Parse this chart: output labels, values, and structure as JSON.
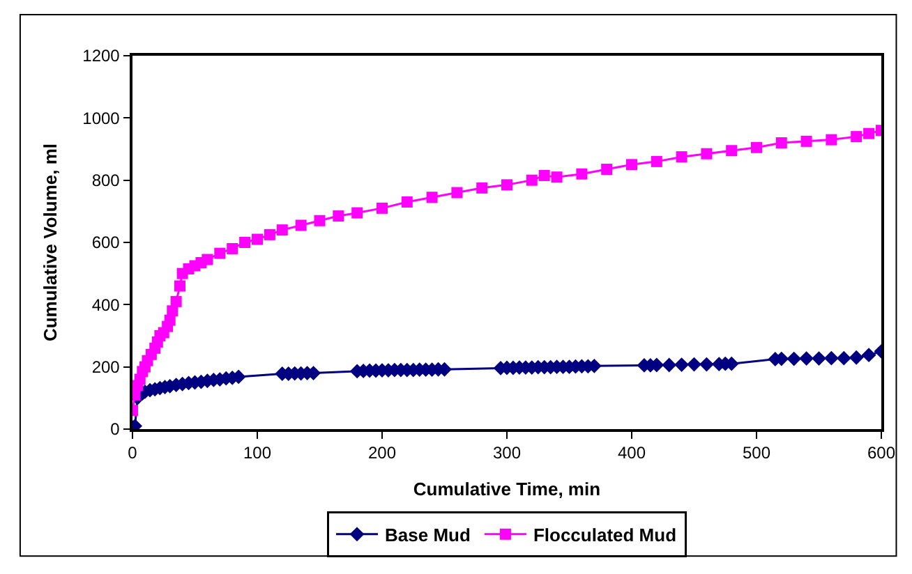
{
  "chart_data": {
    "type": "line",
    "xlabel": "Cumulative Time, min",
    "ylabel": "Cumulative Volume, ml",
    "xlim": [
      0,
      600
    ],
    "ylim": [
      0,
      1200
    ],
    "xticks": [
      0,
      100,
      200,
      300,
      400,
      500,
      600
    ],
    "yticks": [
      0,
      200,
      400,
      600,
      800,
      1000,
      1200
    ],
    "legend": "bottom",
    "series": [
      {
        "name": "Base Mud",
        "color": "#000080",
        "marker": "diamond",
        "x": [
          0,
          2,
          4,
          6,
          8,
          10,
          14,
          18,
          22,
          26,
          30,
          35,
          40,
          45,
          50,
          55,
          60,
          65,
          70,
          75,
          80,
          85,
          120,
          125,
          130,
          135,
          140,
          145,
          180,
          185,
          190,
          195,
          200,
          205,
          210,
          215,
          220,
          225,
          230,
          235,
          240,
          245,
          250,
          295,
          300,
          305,
          310,
          315,
          320,
          325,
          330,
          335,
          340,
          345,
          350,
          355,
          360,
          365,
          370,
          410,
          415,
          420,
          430,
          440,
          450,
          460,
          470,
          475,
          480,
          515,
          520,
          530,
          540,
          550,
          560,
          570,
          580,
          590,
          600
        ],
        "values": [
          5,
          10,
          100,
          110,
          115,
          120,
          125,
          128,
          132,
          135,
          138,
          142,
          145,
          148,
          150,
          152,
          155,
          158,
          160,
          163,
          165,
          168,
          178,
          178,
          179,
          179,
          180,
          180,
          186,
          187,
          188,
          188,
          189,
          189,
          190,
          190,
          190,
          190,
          191,
          191,
          191,
          192,
          192,
          196,
          197,
          197,
          198,
          198,
          198,
          199,
          199,
          199,
          200,
          200,
          200,
          201,
          202,
          202,
          203,
          205,
          205,
          206,
          206,
          207,
          208,
          208,
          209,
          210,
          210,
          225,
          226,
          226,
          227,
          227,
          228,
          228,
          230,
          238,
          250
        ]
      },
      {
        "name": "Flocculated Mud",
        "color": "#ff00ff",
        "marker": "square",
        "x": [
          0,
          2,
          4,
          6,
          8,
          10,
          12,
          15,
          18,
          20,
          22,
          25,
          28,
          30,
          32,
          35,
          38,
          40,
          45,
          50,
          55,
          60,
          70,
          80,
          90,
          100,
          110,
          120,
          135,
          150,
          165,
          180,
          200,
          220,
          240,
          260,
          280,
          300,
          320,
          330,
          340,
          360,
          380,
          400,
          420,
          440,
          460,
          480,
          500,
          520,
          540,
          560,
          580,
          590,
          600
        ],
        "values": [
          60,
          110,
          140,
          160,
          185,
          200,
          220,
          240,
          260,
          280,
          300,
          310,
          330,
          350,
          380,
          410,
          460,
          500,
          515,
          525,
          535,
          545,
          565,
          580,
          600,
          610,
          625,
          640,
          655,
          670,
          685,
          695,
          710,
          730,
          745,
          760,
          775,
          785,
          800,
          815,
          810,
          820,
          835,
          850,
          860,
          875,
          885,
          895,
          905,
          920,
          925,
          930,
          940,
          950,
          960
        ]
      }
    ]
  }
}
